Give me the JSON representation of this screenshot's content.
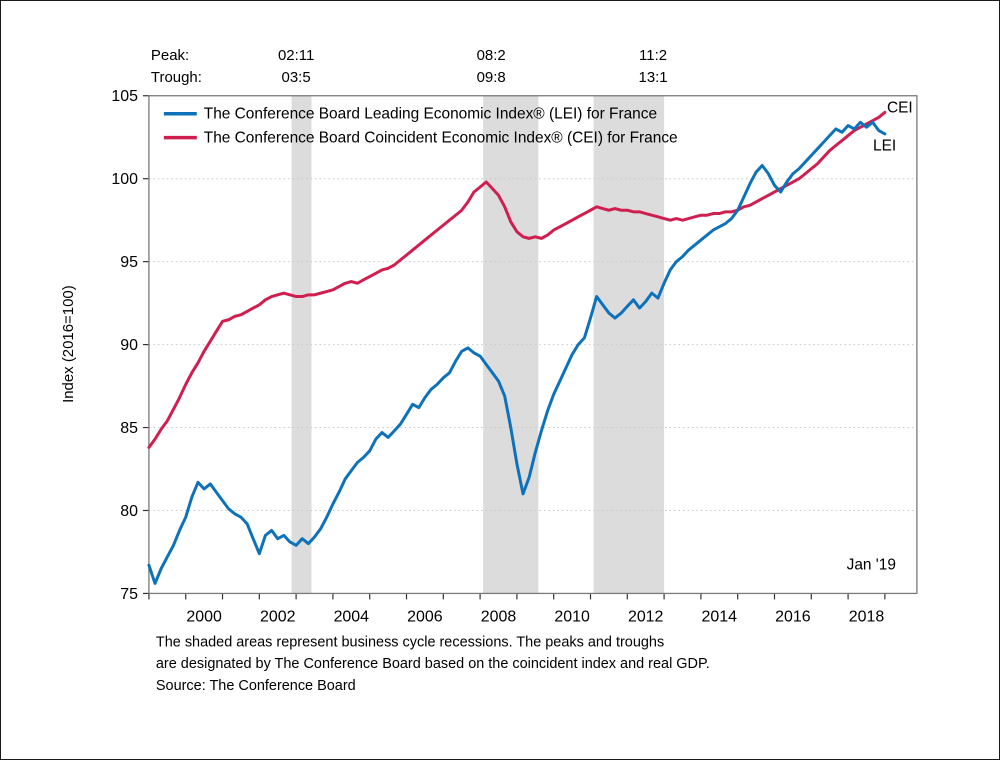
{
  "colors": {
    "lei_blue": "#0d72ba",
    "cei_red": "#d01e50",
    "recession_band": "#dcdcdc",
    "grid": "#c8c8c8",
    "frame": "#7a7a7a",
    "tick": "#333333"
  },
  "chart_data": {
    "type": "line",
    "title": "",
    "xlabel": "",
    "ylabel": "Index (2016=100)",
    "ylim": [
      75,
      105
    ],
    "yticks": [
      75,
      80,
      85,
      90,
      95,
      100,
      105
    ],
    "grid_values": [
      80,
      85,
      90,
      95,
      100
    ],
    "xlim": [
      1999.0,
      2019.87
    ],
    "xtick_years": [
      2000,
      2002,
      2004,
      2006,
      2008,
      2010,
      2012,
      2014,
      2016,
      2018
    ],
    "xtick_label_offset": 0.5,
    "minor_tick_years": [
      1999,
      2000,
      2001,
      2002,
      2003,
      2004,
      2005,
      2006,
      2007,
      2008,
      2009,
      2010,
      2011,
      2012,
      2013,
      2014,
      2015,
      2016,
      2017,
      2018,
      2019
    ],
    "legend_position": "top-left-inside",
    "grid_on": true,
    "recessions": [
      {
        "peak_label": "02:11",
        "trough_label": "03:5",
        "start": 2002.875,
        "end": 2003.417,
        "label_year": 2003.0
      },
      {
        "peak_label": "08:2",
        "trough_label": "09:8",
        "start": 2008.083,
        "end": 2009.583,
        "label_year": 2008.3
      },
      {
        "peak_label": "11:2",
        "trough_label": "13:1",
        "start": 2011.083,
        "end": 2013.0,
        "label_year": 2012.7
      }
    ],
    "annotations": {
      "peak_row_label": "Peak:",
      "trough_row_label": "Trough:",
      "last_date_label": "Jan '19",
      "cei_end_label": "CEI",
      "lei_end_label": "LEI"
    },
    "series": [
      {
        "id": "LEI",
        "name": "The Conference Board Leading Economic Index® (LEI) for France",
        "color": "#0d72ba",
        "x_start": 1999.0,
        "x_step": 0.1666667,
        "values": [
          76.7,
          75.6,
          76.5,
          77.2,
          77.9,
          78.8,
          79.6,
          80.8,
          81.7,
          81.3,
          81.6,
          81.1,
          80.6,
          80.1,
          79.8,
          79.6,
          79.2,
          78.3,
          77.4,
          78.5,
          78.8,
          78.3,
          78.5,
          78.1,
          77.9,
          78.3,
          78.0,
          78.4,
          78.9,
          79.6,
          80.4,
          81.1,
          81.9,
          82.4,
          82.9,
          83.2,
          83.6,
          84.3,
          84.7,
          84.4,
          84.8,
          85.2,
          85.8,
          86.4,
          86.2,
          86.8,
          87.3,
          87.6,
          88.0,
          88.3,
          89.0,
          89.6,
          89.8,
          89.5,
          89.3,
          88.8,
          88.3,
          87.8,
          86.9,
          85.0,
          82.8,
          81.0,
          82.0,
          83.5,
          84.8,
          86.0,
          87.0,
          87.8,
          88.6,
          89.4,
          90.0,
          90.4,
          91.6,
          92.9,
          92.4,
          91.9,
          91.6,
          91.9,
          92.3,
          92.7,
          92.2,
          92.6,
          93.1,
          92.8,
          93.7,
          94.5,
          95.0,
          95.3,
          95.7,
          96.0,
          96.3,
          96.6,
          96.9,
          97.1,
          97.3,
          97.6,
          98.1,
          98.9,
          99.7,
          100.4,
          100.8,
          100.3,
          99.6,
          99.2,
          99.8,
          100.3,
          100.6,
          101.0,
          101.4,
          101.8,
          102.2,
          102.6,
          103.0,
          102.8,
          103.2,
          103.0,
          103.4,
          103.1,
          103.4,
          102.9,
          102.7
        ]
      },
      {
        "id": "CEI",
        "name": "The Conference Board Coincident Economic Index® (CEI) for France",
        "color": "#d01e50",
        "x_start": 1999.0,
        "x_step": 0.1666667,
        "values": [
          83.8,
          84.3,
          84.9,
          85.4,
          86.1,
          86.8,
          87.6,
          88.3,
          88.9,
          89.6,
          90.2,
          90.8,
          91.4,
          91.5,
          91.7,
          91.8,
          92.0,
          92.2,
          92.4,
          92.7,
          92.9,
          93.0,
          93.1,
          93.0,
          92.9,
          92.9,
          93.0,
          93.0,
          93.1,
          93.2,
          93.3,
          93.5,
          93.7,
          93.8,
          93.7,
          93.9,
          94.1,
          94.3,
          94.5,
          94.6,
          94.8,
          95.1,
          95.4,
          95.7,
          96.0,
          96.3,
          96.6,
          96.9,
          97.2,
          97.5,
          97.8,
          98.1,
          98.6,
          99.2,
          99.5,
          99.8,
          99.4,
          99.0,
          98.3,
          97.4,
          96.8,
          96.5,
          96.4,
          96.5,
          96.4,
          96.6,
          96.9,
          97.1,
          97.3,
          97.5,
          97.7,
          97.9,
          98.1,
          98.3,
          98.2,
          98.1,
          98.2,
          98.1,
          98.1,
          98.0,
          98.0,
          97.9,
          97.8,
          97.7,
          97.6,
          97.5,
          97.6,
          97.5,
          97.6,
          97.7,
          97.8,
          97.8,
          97.9,
          97.9,
          98.0,
          98.0,
          98.1,
          98.3,
          98.4,
          98.6,
          98.8,
          99.0,
          99.2,
          99.4,
          99.6,
          99.8,
          100.0,
          100.3,
          100.6,
          100.9,
          101.3,
          101.7,
          102.0,
          102.3,
          102.6,
          102.9,
          103.1,
          103.3,
          103.5,
          103.7,
          104.0
        ]
      }
    ]
  },
  "footer": {
    "lines": [
      "The shaded areas represent business cycle recessions. The peaks and troughs",
      "are designated by The Conference Board based on the coincident index and real GDP.",
      "Source: The Conference Board"
    ]
  }
}
